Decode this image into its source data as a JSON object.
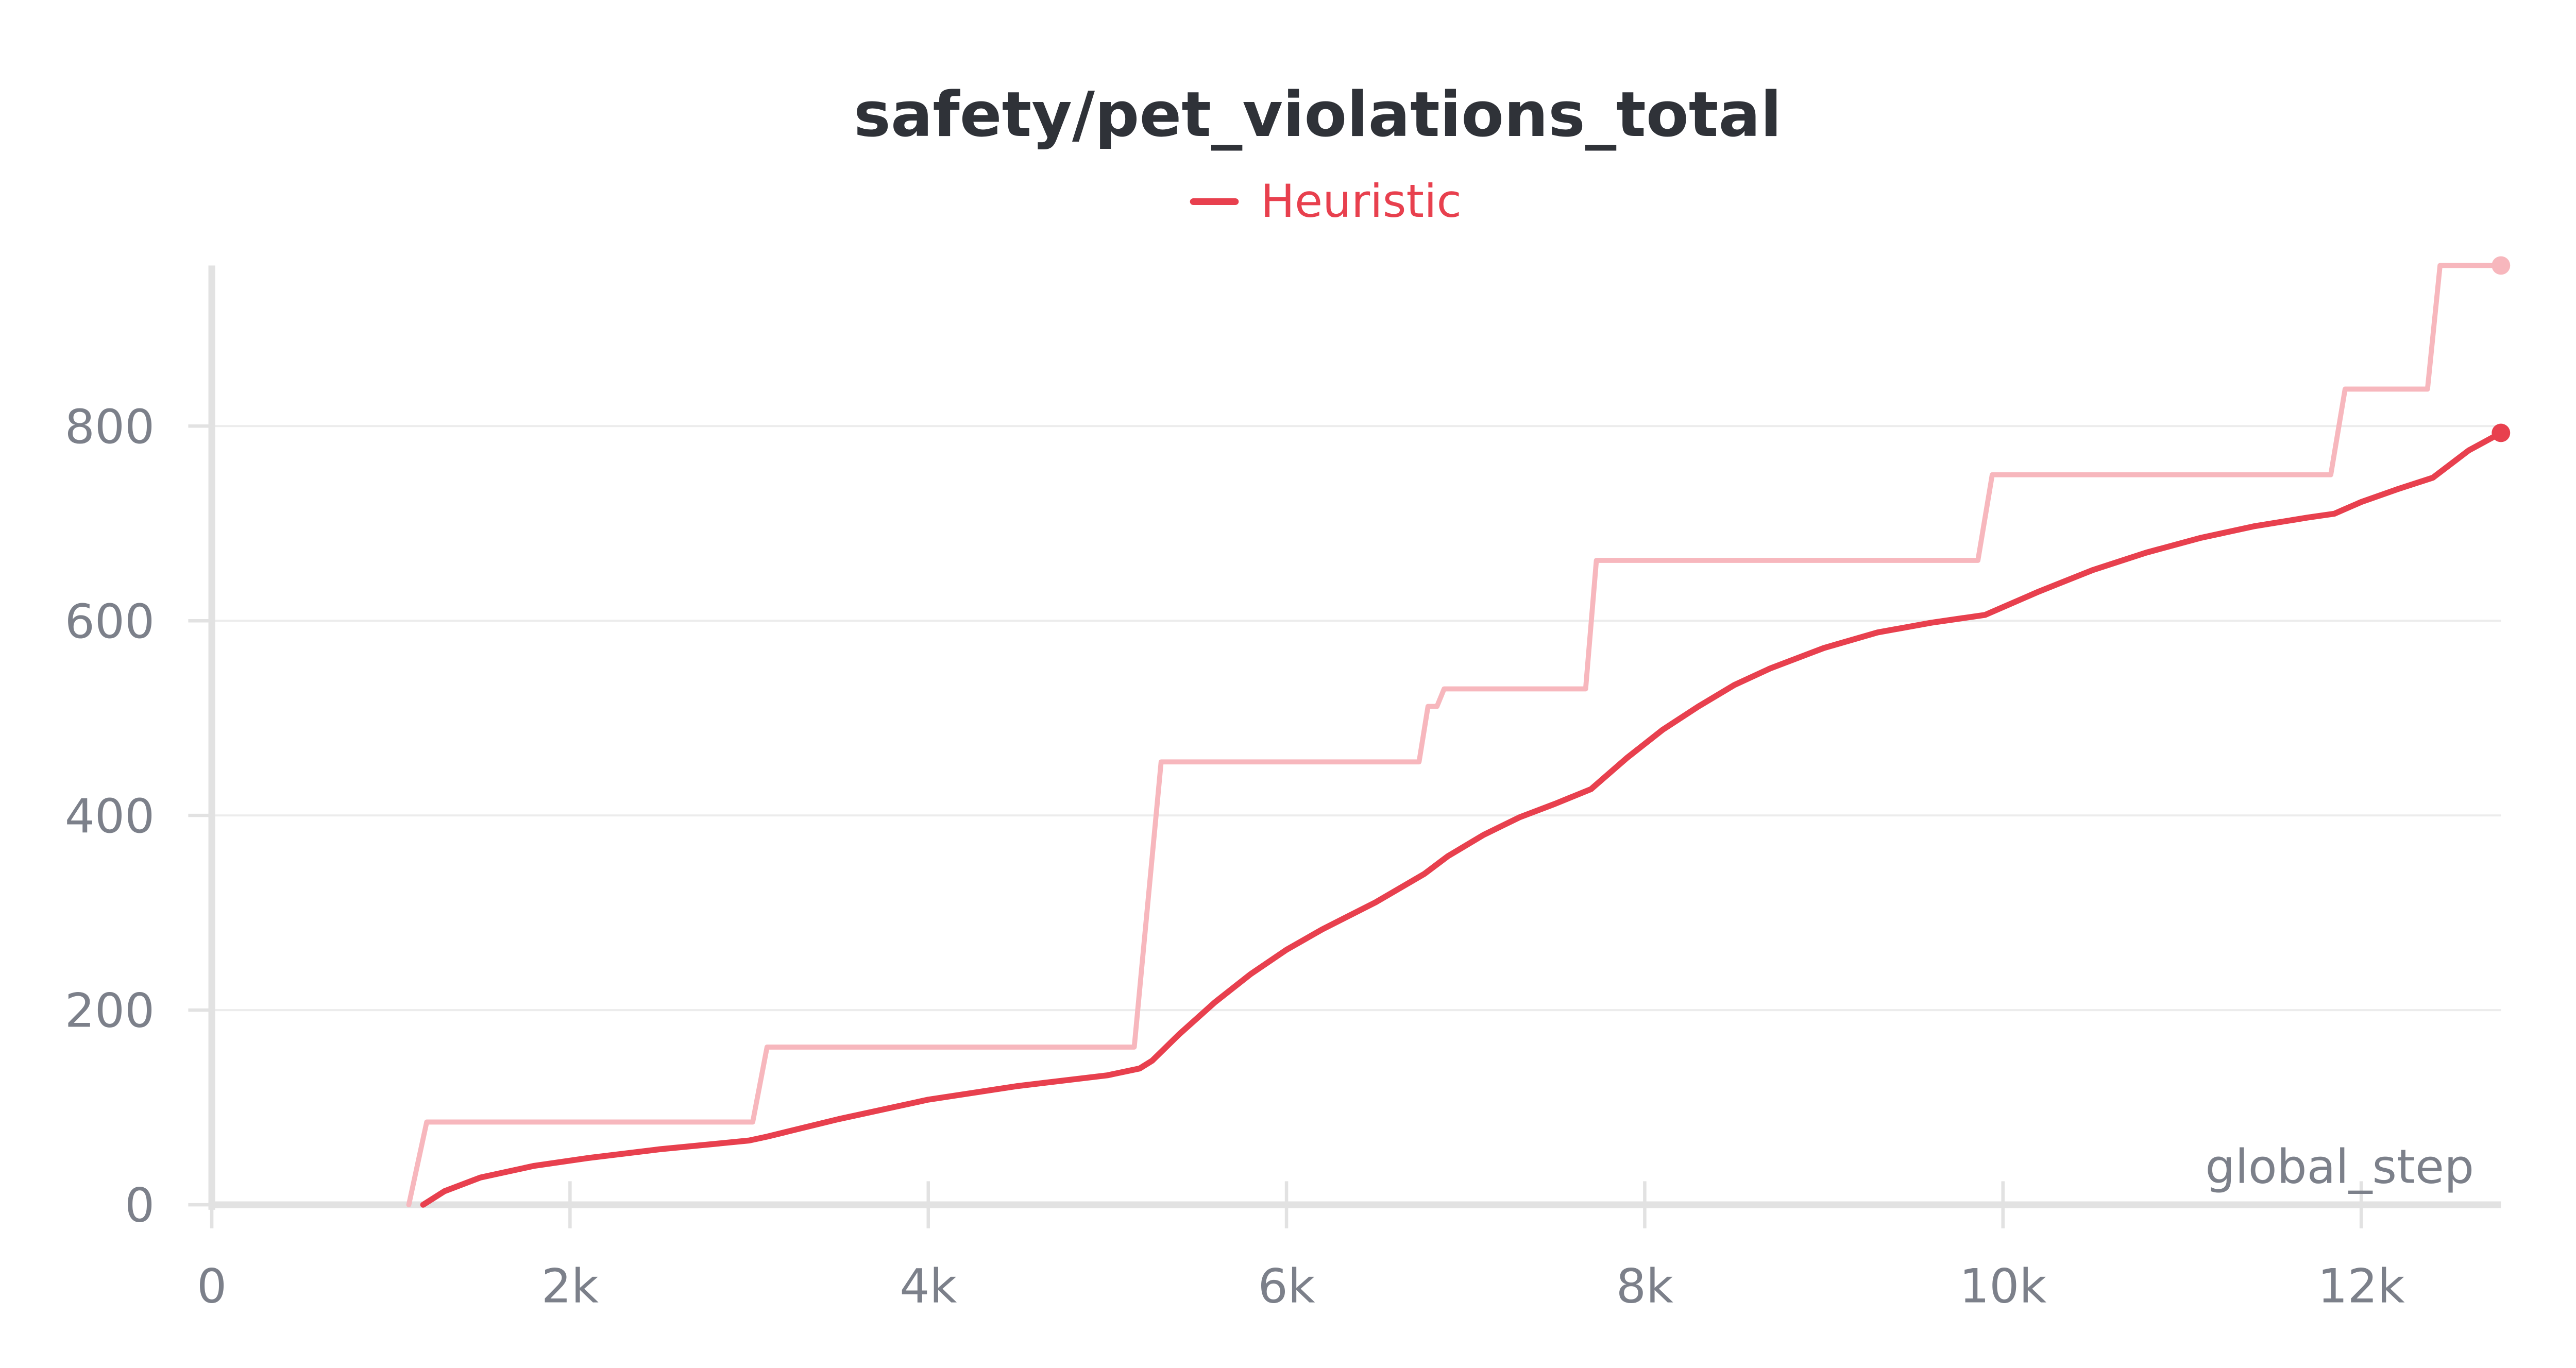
{
  "chart_data": {
    "type": "line",
    "title": "safety/pet_violations_total",
    "xlabel": "global_step",
    "ylabel": "",
    "xlim": [
      0,
      12780
    ],
    "ylim": [
      0,
      965
    ],
    "x_ticks": [
      0,
      2000,
      4000,
      6000,
      8000,
      10000,
      12000
    ],
    "x_tick_labels": [
      "0",
      "2k",
      "4k",
      "6k",
      "8k",
      "10k",
      "12k"
    ],
    "y_ticks": [
      0,
      200,
      400,
      600,
      800
    ],
    "y_tick_labels": [
      "0",
      "200",
      "400",
      "600",
      "800"
    ],
    "grid": "horizontal",
    "legend_position": "top-center",
    "colors": {
      "series": "#e8404e",
      "raw": "#f7b7bd",
      "axis": "#e2e2e2",
      "grid": "#ececec",
      "text": "#7c808a",
      "title": "#2f3238"
    },
    "series": [
      {
        "name": "Heuristic",
        "smoothed": {
          "x": [
            1180,
            1300,
            1500,
            1800,
            2100,
            2500,
            3000,
            3100,
            3500,
            4000,
            4500,
            5000,
            5180,
            5250,
            5400,
            5600,
            5800,
            6000,
            6200,
            6500,
            6770,
            6900,
            7100,
            7300,
            7500,
            7700,
            7900,
            8100,
            8300,
            8500,
            8700,
            9000,
            9300,
            9600,
            9900,
            10000,
            10200,
            10500,
            10800,
            11100,
            11400,
            11700,
            11850,
            11900,
            12000,
            12200,
            12400,
            12600,
            12780
          ],
          "y": [
            0,
            14,
            28,
            40,
            48,
            57,
            66,
            70,
            88,
            108,
            122,
            133,
            140,
            148,
            175,
            208,
            237,
            262,
            283,
            311,
            340,
            358,
            380,
            398,
            412,
            427,
            459,
            488,
            512,
            534,
            551,
            572,
            588,
            598,
            606,
            614,
            630,
            652,
            670,
            685,
            697,
            706,
            710,
            714,
            722,
            735,
            747,
            775,
            793
          ]
        },
        "raw": {
          "x": [
            1100,
            1200,
            3020,
            3100,
            5150,
            5300,
            6740,
            6790,
            6840,
            6880,
            7670,
            7730,
            9860,
            9940,
            11830,
            11910,
            12370,
            12440,
            12780
          ],
          "y": [
            0,
            85,
            85,
            162,
            162,
            455,
            455,
            512,
            512,
            530,
            530,
            662,
            662,
            750,
            750,
            838,
            838,
            965,
            965
          ]
        }
      }
    ]
  }
}
